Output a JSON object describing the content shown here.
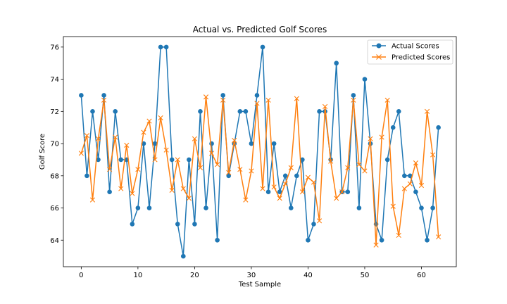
{
  "chart_data": {
    "type": "line",
    "title": "Actual vs. Predicted Golf Scores",
    "xlabel": "Test Sample",
    "ylabel": "Golf Score",
    "xlim": [
      -3.15,
      66.15
    ],
    "ylim": [
      62.35,
      76.65
    ],
    "xticks": [
      0,
      10,
      20,
      30,
      40,
      50,
      60
    ],
    "yticks": [
      64,
      66,
      68,
      70,
      72,
      74,
      76
    ],
    "grid": false,
    "legend_position": "top-right",
    "series": [
      {
        "name": "Actual Scores",
        "color": "#1f77b4",
        "marker": "circle",
        "values": [
          73,
          68,
          72,
          69,
          73,
          67,
          72,
          69,
          69,
          65,
          66,
          70,
          66,
          70,
          76,
          76,
          69,
          65,
          63,
          69,
          65,
          72,
          66,
          70,
          64,
          73,
          68,
          70,
          72,
          72,
          70,
          73,
          76,
          67,
          70,
          67,
          68,
          66,
          68,
          69,
          64,
          65,
          72,
          72,
          69,
          75,
          67,
          67,
          73,
          66,
          74,
          70,
          65,
          64,
          69,
          71,
          72,
          68,
          68,
          67,
          66,
          64,
          66,
          71
        ]
      },
      {
        "name": "Predicted Scores",
        "color": "#ff7f0e",
        "marker": "x",
        "values": [
          69.4,
          70.5,
          66.5,
          70.3,
          72.7,
          68.4,
          70.4,
          67.2,
          69.9,
          66.9,
          68.4,
          70.7,
          71.4,
          69.0,
          71.6,
          69.6,
          67.1,
          69.0,
          67.2,
          66.6,
          70.3,
          68.5,
          72.9,
          69.4,
          68.7,
          72.7,
          68.2,
          70.2,
          68.4,
          66.5,
          68.3,
          72.5,
          67.2,
          72.7,
          67.3,
          66.6,
          67.5,
          68.5,
          72.8,
          67.0,
          67.9,
          67.6,
          65.2,
          72.3,
          68.9,
          66.6,
          67.0,
          68.5,
          72.7,
          68.7,
          68.3,
          70.3,
          63.7,
          70.4,
          72.7,
          66.1,
          64.3,
          67.2,
          67.5,
          68.8,
          67.4,
          72.0,
          69.3,
          64.2
        ]
      }
    ]
  }
}
